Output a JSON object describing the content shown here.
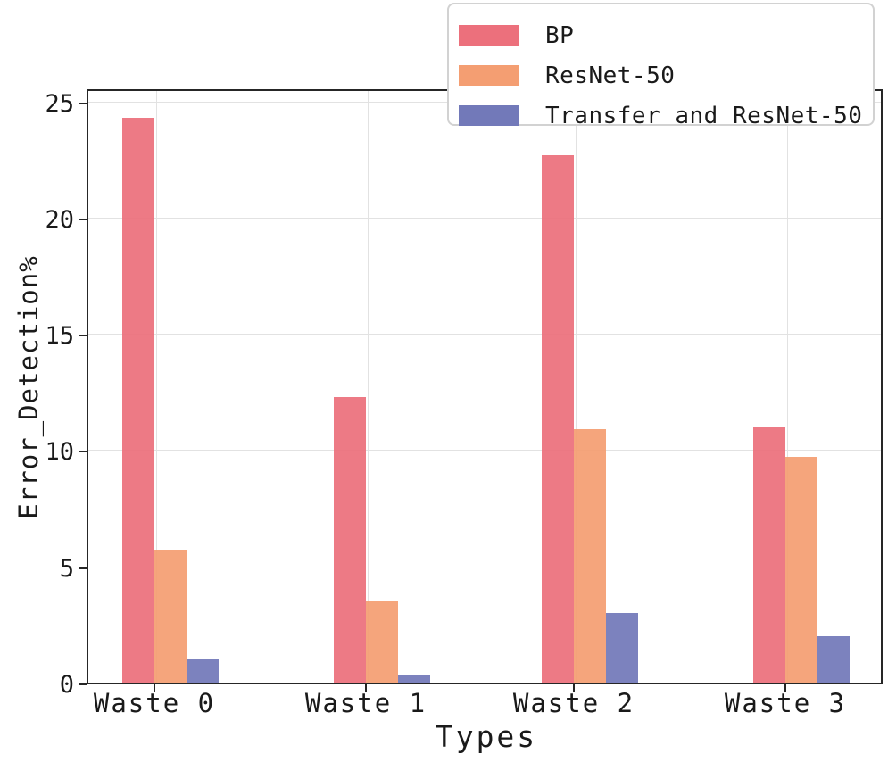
{
  "chart_data": {
    "type": "bar",
    "title": "",
    "xlabel": "Types",
    "ylabel": "Error_Detection%",
    "categories": [
      "Waste 0",
      "Waste 1",
      "Waste 2",
      "Waste 3"
    ],
    "series": [
      {
        "name": "BP",
        "color": "#ec707c",
        "values": [
          24.3,
          12.3,
          22.7,
          11.0
        ]
      },
      {
        "name": "ResNet-50",
        "color": "#f49e72",
        "values": [
          5.7,
          3.5,
          10.9,
          9.7
        ]
      },
      {
        "name": "Transfer and ResNet-50",
        "color": "#7279b9",
        "values": [
          1.0,
          0.3,
          3.0,
          2.0
        ]
      }
    ],
    "ylim": [
      0,
      25.6
    ],
    "yticks": [
      0,
      5,
      10,
      15,
      20,
      25
    ],
    "grid": "both-axes, light gray",
    "legend_position": "upper right, overlapping plot top",
    "colors": {
      "spine": "#262626",
      "gridline": "#e2e2e2",
      "background": "#ffffff",
      "text": "#1a1a1a"
    }
  }
}
